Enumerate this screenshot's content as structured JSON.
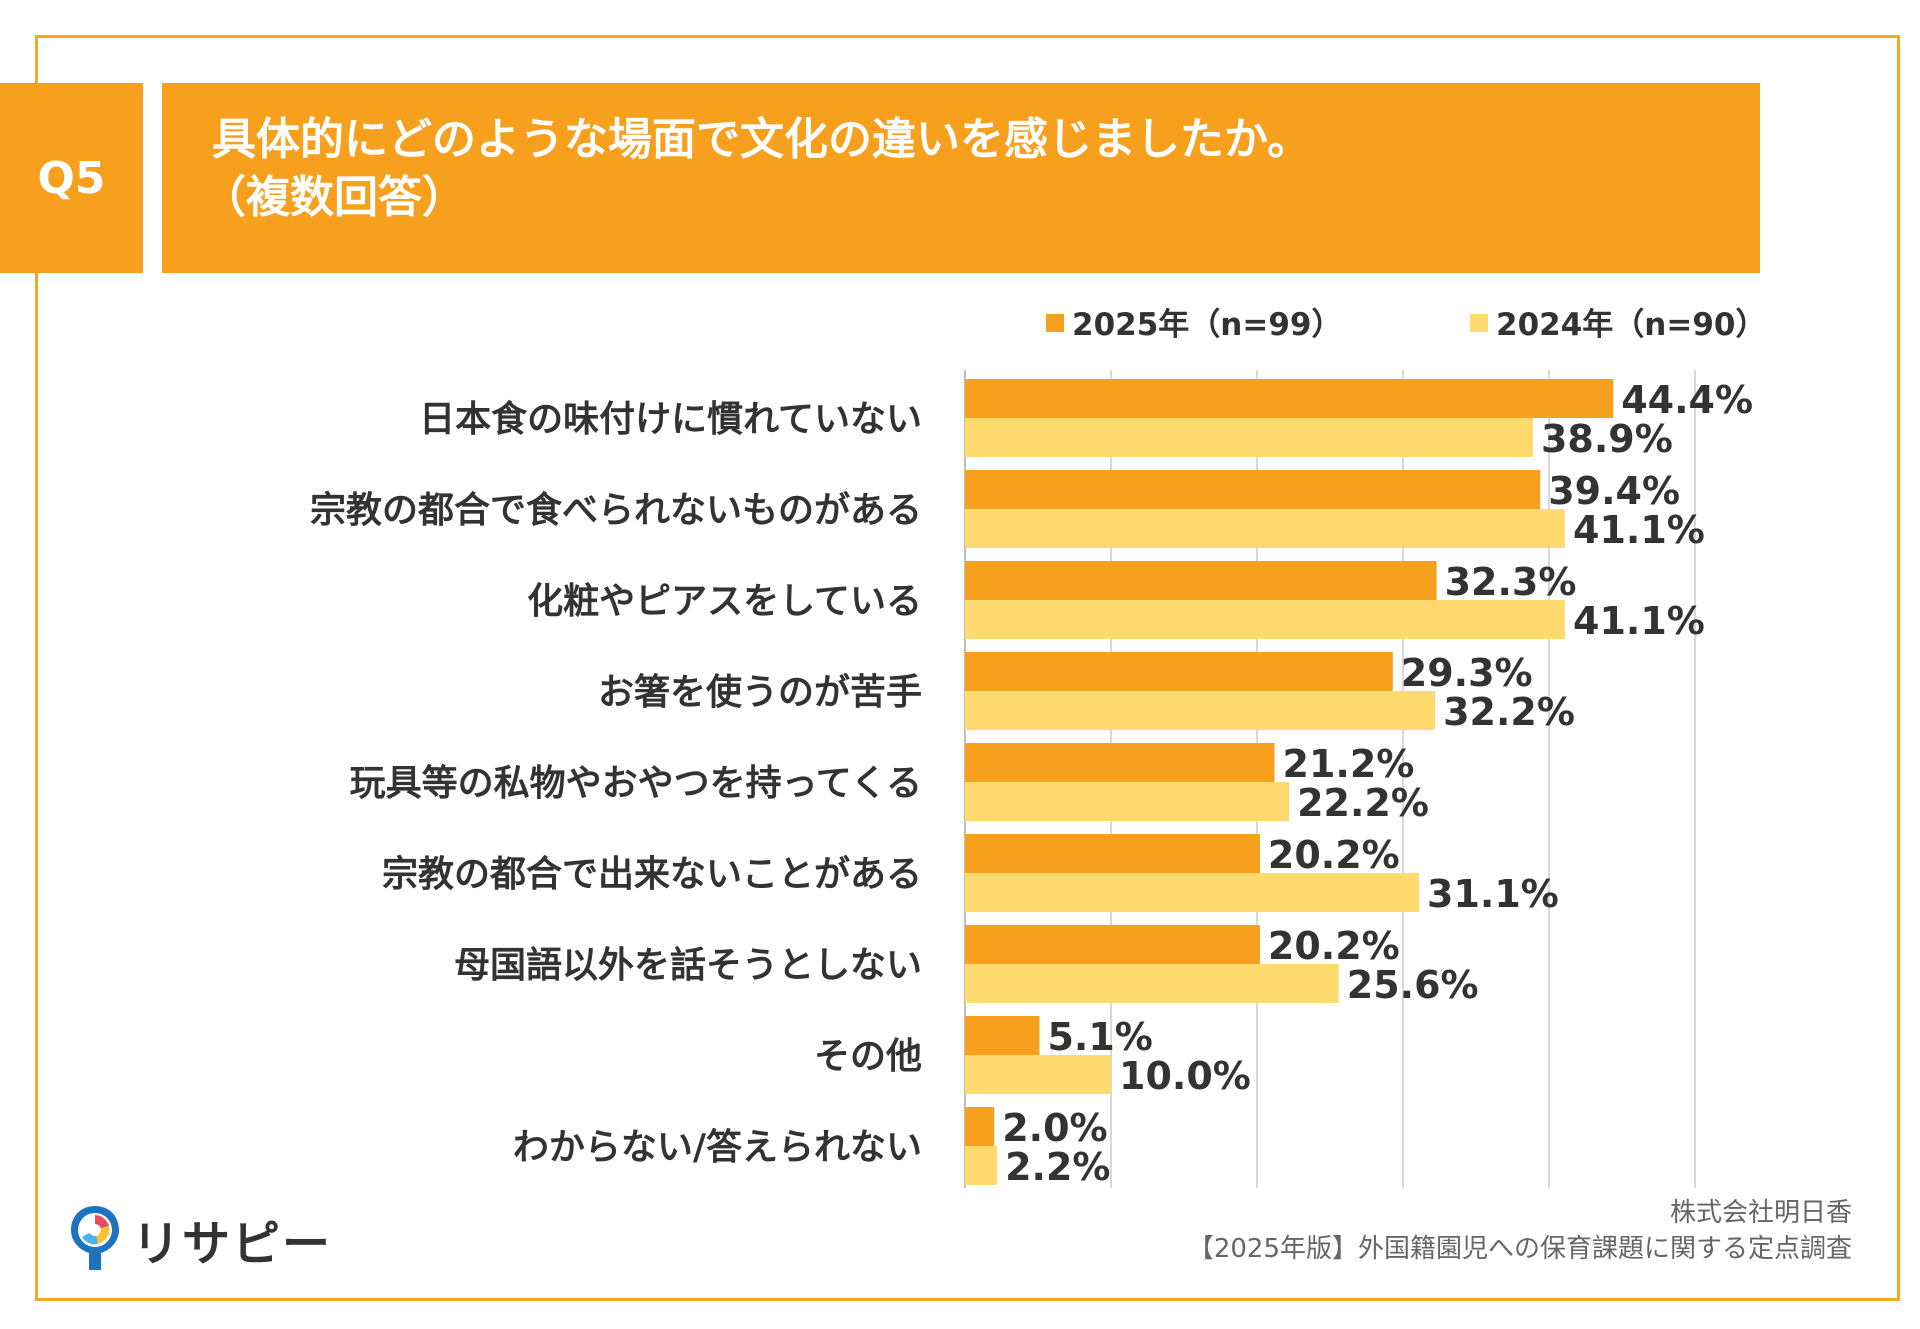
{
  "header": {
    "badge": "Q5",
    "title_line1": "具体的にどのような場面で文化の違いを感じましたか。",
    "title_line2": "（複数回答）"
  },
  "colors": {
    "accent": "#F6A01E",
    "series_2025": "#F6A01E",
    "series_2024": "#FFDA6E",
    "frame": "#F5A623",
    "text": "#333333",
    "grid": "#D9D9D9"
  },
  "chart_data": {
    "type": "bar",
    "orientation": "horizontal",
    "categories": [
      "日本食の味付けに慣れていない",
      "宗教の都合で食べられないものがある",
      "化粧やピアスをしている",
      "お箸を使うのが苦手",
      "玩具等の私物やおやつを持ってくる",
      "宗教の都合で出来ないことがある",
      "母国語以外を話そうとしない",
      "その他",
      "わからない/答えられない"
    ],
    "series": [
      {
        "name": "2025年（n=99）",
        "values": [
          44.4,
          39.4,
          32.3,
          29.3,
          21.2,
          20.2,
          20.2,
          5.1,
          2.0
        ],
        "labels": [
          "44.4%",
          "39.4%",
          "32.3%",
          "29.3%",
          "21.2%",
          "20.2%",
          "20.2%",
          "5.1%",
          "2.0%"
        ]
      },
      {
        "name": "2024年（n=90）",
        "values": [
          38.9,
          41.1,
          41.1,
          32.2,
          22.2,
          31.1,
          25.6,
          10.0,
          2.2
        ],
        "labels": [
          "38.9%",
          "41.1%",
          "41.1%",
          "32.2%",
          "22.2%",
          "31.1%",
          "25.6%",
          "10.0%",
          "2.2%"
        ]
      }
    ],
    "xlim": [
      0,
      50
    ],
    "gridlines": [
      0,
      10,
      20,
      30,
      40,
      50
    ],
    "grid": true,
    "legend_position": "top-right"
  },
  "footer": {
    "company": "株式会社明日香",
    "survey": "【2025年版】外国籍園児への保育課題に関する定点調査",
    "logo_text": "リサピー"
  }
}
